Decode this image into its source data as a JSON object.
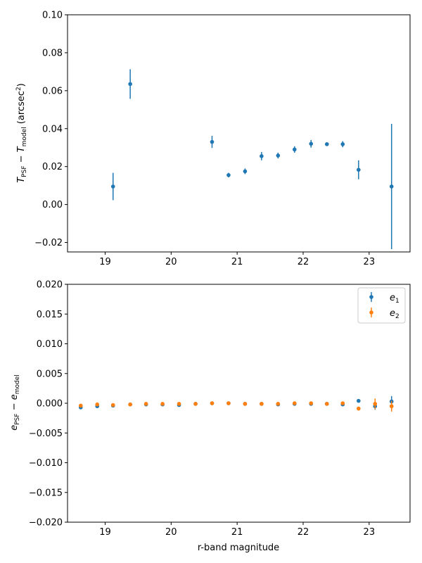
{
  "chart_data": [
    {
      "type": "scatter",
      "ylabel": "T_PSF − T_model (arcsec²)",
      "ylabel_parts": {
        "sym": "T",
        "sub1": "PSF",
        "minus": " − ",
        "sub2": "model",
        "unit_pre": " (arcsec",
        "unit_sup": "2",
        "unit_post": ")"
      },
      "xlim": [
        18.43,
        23.62
      ],
      "ylim": [
        -0.025,
        0.1
      ],
      "xticks": [
        19,
        20,
        21,
        22,
        23
      ],
      "xtick_labels": [
        "19",
        "20",
        "21",
        "22",
        "23"
      ],
      "yticks": [
        -0.02,
        0.0,
        0.02,
        0.04,
        0.06,
        0.08,
        0.1
      ],
      "ytick_labels": [
        "−0.02",
        "0.00",
        "0.02",
        "0.04",
        "0.06",
        "0.08",
        "0.10"
      ],
      "series": [
        {
          "name": "T",
          "color": "#1f77b4",
          "x": [
            19.12,
            19.38,
            20.62,
            20.87,
            21.12,
            21.37,
            21.62,
            21.87,
            22.12,
            22.36,
            22.6,
            22.84,
            23.34
          ],
          "y": [
            0.0095,
            0.0635,
            0.033,
            0.0155,
            0.0175,
            0.0255,
            0.0258,
            0.029,
            0.032,
            0.0318,
            0.0318,
            0.0183,
            0.0095
          ],
          "err": [
            0.0072,
            0.0078,
            0.0032,
            0.0012,
            0.0015,
            0.0022,
            0.0015,
            0.0017,
            0.002,
            0.001,
            0.0016,
            0.005,
            0.033
          ]
        }
      ]
    },
    {
      "type": "scatter",
      "xlabel": "r-band magnitude",
      "ylabel": "e_PSF − e_model",
      "ylabel_parts": {
        "sym": "e",
        "sub1": "PSF",
        "minus": " − ",
        "sub2": "model"
      },
      "xlim": [
        18.43,
        23.62
      ],
      "ylim": [
        -0.02,
        0.02
      ],
      "xticks": [
        19,
        20,
        21,
        22,
        23
      ],
      "xtick_labels": [
        "19",
        "20",
        "21",
        "22",
        "23"
      ],
      "yticks": [
        -0.02,
        -0.015,
        -0.01,
        -0.005,
        0.0,
        0.005,
        0.01,
        0.015,
        0.02
      ],
      "ytick_labels": [
        "−0.020",
        "−0.015",
        "−0.010",
        "−0.005",
        "0.000",
        "0.005",
        "0.010",
        "0.015",
        "0.020"
      ],
      "legend": {
        "placement": "top-right",
        "entries": [
          {
            "sym": "e",
            "sub": "1"
          },
          {
            "sym": "e",
            "sub": "2"
          }
        ]
      },
      "series": [
        {
          "name": "e1",
          "color": "#1f77b4",
          "x": [
            18.63,
            18.88,
            19.12,
            19.38,
            19.62,
            19.87,
            20.12,
            20.37,
            20.62,
            20.87,
            21.12,
            21.37,
            21.62,
            21.87,
            22.12,
            22.36,
            22.6,
            22.84,
            23.09,
            23.34
          ],
          "y": [
            -0.0007,
            -0.0005,
            -0.0004,
            -0.0002,
            -0.0002,
            -0.0002,
            -0.0003,
            -0.0001,
            0.0,
            0.0,
            -0.0001,
            -0.0001,
            -0.0002,
            -0.0001,
            -0.0001,
            -0.0001,
            -0.0002,
            0.0004,
            -0.0005,
            0.0003
          ],
          "err": [
            0.0002,
            0.0002,
            0.0002,
            0.0002,
            0.0002,
            0.0002,
            0.0002,
            0.0001,
            0.0001,
            0.0001,
            0.0001,
            0.0001,
            0.0001,
            0.0001,
            0.0001,
            0.0001,
            0.0001,
            0.0002,
            0.0006,
            0.0009
          ]
        },
        {
          "name": "e2",
          "color": "#ff7f0e",
          "x": [
            18.63,
            18.88,
            19.12,
            19.38,
            19.62,
            19.87,
            20.12,
            20.37,
            20.62,
            20.87,
            21.12,
            21.37,
            21.62,
            21.87,
            22.12,
            22.36,
            22.6,
            22.84,
            23.09,
            23.34
          ],
          "y": [
            -0.0004,
            -0.0002,
            -0.0003,
            -0.0002,
            -0.0001,
            -0.0001,
            -0.0001,
            -0.0001,
            0.0,
            0.0,
            -0.0001,
            -0.0001,
            -0.0001,
            0.0,
            0.0,
            -0.0001,
            0.0,
            -0.0009,
            -0.0001,
            -0.0005
          ],
          "err": [
            0.0002,
            0.0002,
            0.0002,
            0.0002,
            0.0002,
            0.0002,
            0.0002,
            0.0001,
            0.0001,
            0.0001,
            0.0001,
            0.0001,
            0.0001,
            0.0001,
            0.0001,
            0.0001,
            0.0001,
            0.0003,
            0.0009,
            0.0009
          ]
        }
      ]
    }
  ]
}
